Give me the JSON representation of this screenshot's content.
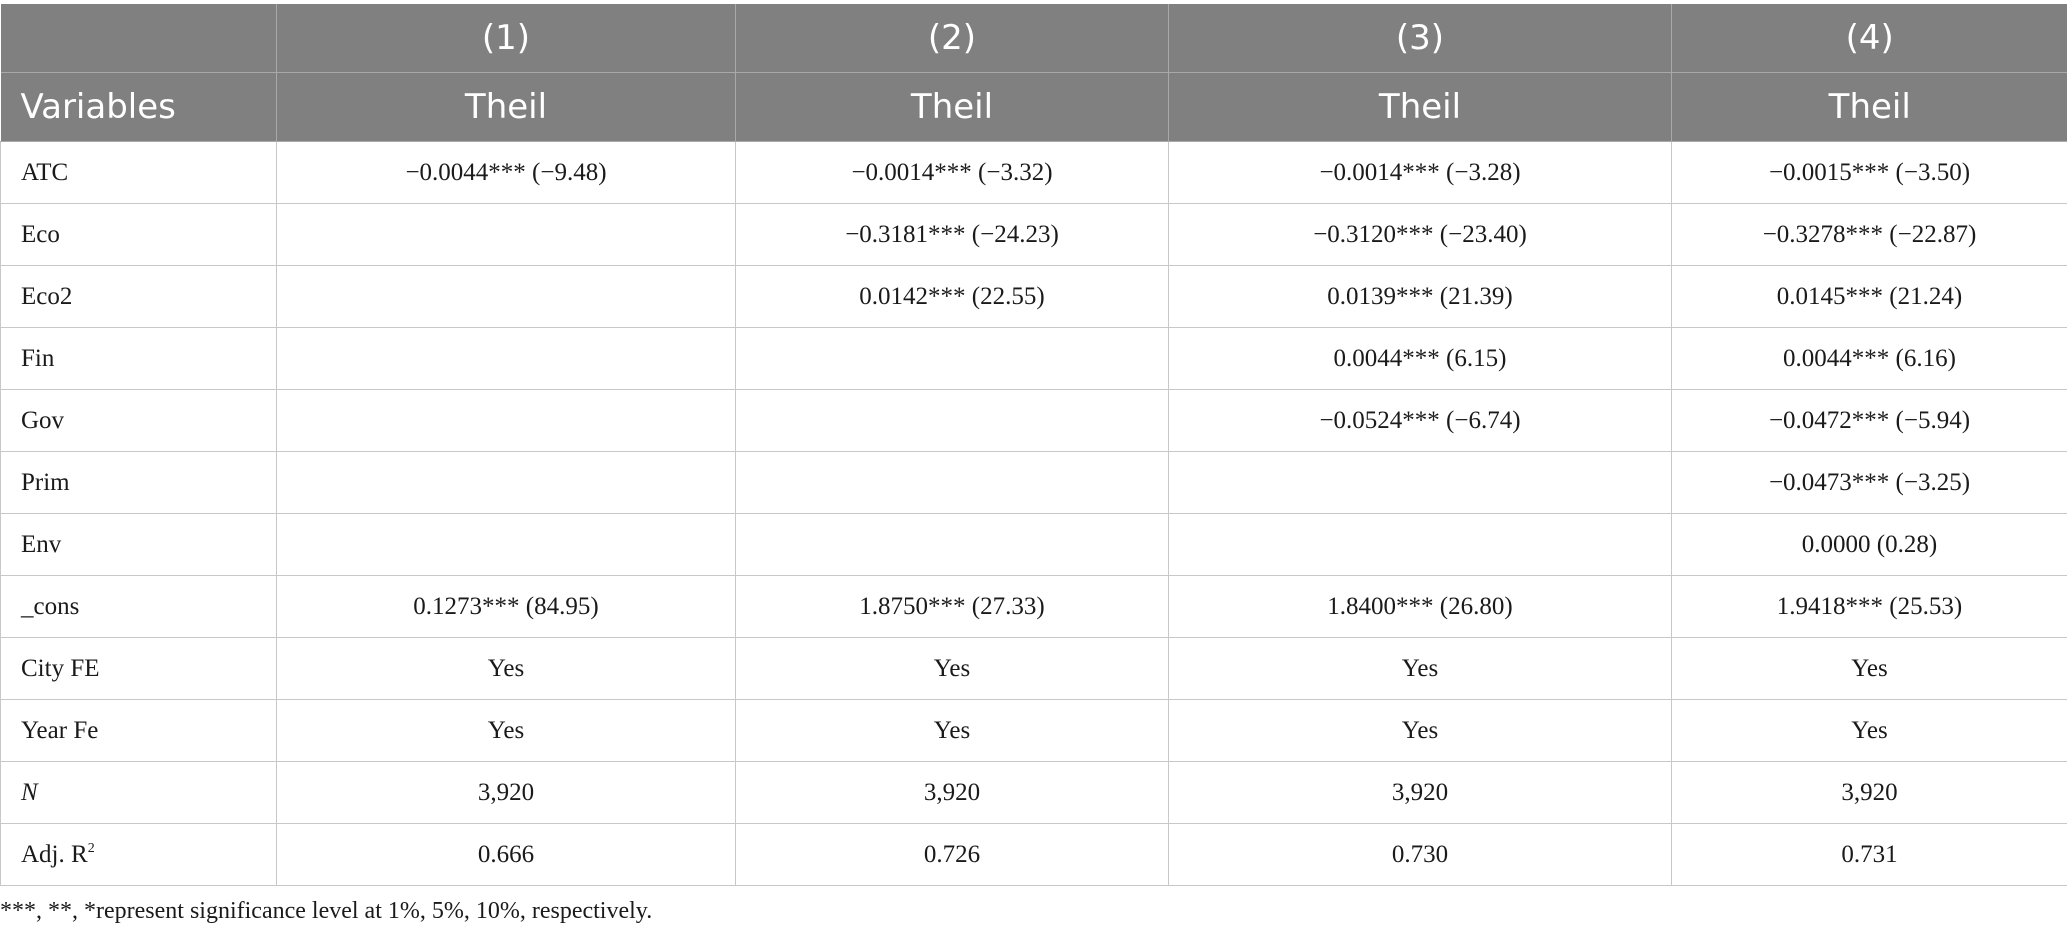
{
  "header": {
    "numbers": [
      "",
      "(1)",
      "(2)",
      "(3)",
      "(4)"
    ],
    "labels": [
      "Variables",
      "Theil",
      "Theil",
      "Theil",
      "Theil"
    ]
  },
  "rows": [
    {
      "label": "ATC",
      "cells": [
        "−0.0044*** (−9.48)",
        "−0.0014*** (−3.32)",
        "−0.0014*** (−3.28)",
        "−0.0015*** (−3.50)"
      ]
    },
    {
      "label": "Eco",
      "cells": [
        "",
        "−0.3181*** (−24.23)",
        "−0.3120*** (−23.40)",
        "−0.3278*** (−22.87)"
      ]
    },
    {
      "label": "Eco2",
      "cells": [
        "",
        "0.0142*** (22.55)",
        "0.0139*** (21.39)",
        "0.0145*** (21.24)"
      ]
    },
    {
      "label": "Fin",
      "cells": [
        "",
        "",
        "0.0044*** (6.15)",
        "0.0044*** (6.16)"
      ]
    },
    {
      "label": "Gov",
      "cells": [
        "",
        "",
        "−0.0524*** (−6.74)",
        "−0.0472*** (−5.94)"
      ]
    },
    {
      "label": "Prim",
      "cells": [
        "",
        "",
        "",
        "−0.0473*** (−3.25)"
      ]
    },
    {
      "label": "Env",
      "cells": [
        "",
        "",
        "",
        "0.0000 (0.28)"
      ]
    },
    {
      "label": "_cons",
      "cells": [
        "0.1273*** (84.95)",
        "1.8750*** (27.33)",
        "1.8400*** (26.80)",
        "1.9418*** (25.53)"
      ]
    },
    {
      "label": "City FE",
      "cells": [
        "Yes",
        "Yes",
        "Yes",
        "Yes"
      ]
    },
    {
      "label": "Year Fe",
      "cells": [
        "Yes",
        "Yes",
        "Yes",
        "Yes"
      ]
    },
    {
      "label": "N",
      "cells": [
        "3,920",
        "3,920",
        "3,920",
        "3,920"
      ]
    },
    {
      "label": "Adj. R",
      "label_sup": "2",
      "cells": [
        "0.666",
        "0.726",
        "0.730",
        "0.731"
      ]
    }
  ],
  "footnote": "***, **, *represent significance level at 1%, 5%, 10%, respectively."
}
